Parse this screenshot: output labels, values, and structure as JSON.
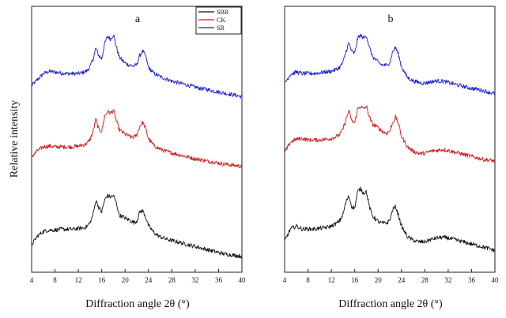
{
  "chart_data": [
    {
      "type": "line",
      "panel_label": "a",
      "xlabel": "Diffraction angle 2θ (°)",
      "ylabel": "Relative intensity",
      "xlim": [
        4,
        40
      ],
      "xticks": [
        4,
        8,
        12,
        16,
        20,
        24,
        28,
        32,
        36,
        40
      ],
      "y_ticks_shown": false,
      "legend": {
        "placement": "top-right",
        "entries": [
          "SBR",
          "CK",
          "SR"
        ]
      },
      "series": [
        {
          "name": "SR",
          "color": "#1a1acc",
          "x": [
            4,
            5,
            6,
            7,
            8,
            9,
            10,
            11,
            12,
            13,
            13.5,
            14,
            14.5,
            15,
            15.5,
            16,
            16.5,
            17,
            17.5,
            18,
            18.5,
            19,
            19.5,
            20,
            20.5,
            21,
            21.5,
            22,
            22.5,
            23,
            23.5,
            24,
            25,
            26,
            27,
            28,
            29,
            30,
            31,
            32,
            33,
            34,
            35,
            36,
            37,
            38,
            39,
            40
          ],
          "y": [
            1.0,
            1.8,
            2.6,
            2.9,
            2.8,
            2.7,
            2.6,
            2.6,
            2.6,
            2.8,
            3.0,
            3.5,
            4.5,
            6.0,
            5.0,
            4.6,
            6.6,
            7.6,
            7.2,
            7.8,
            6.2,
            4.8,
            4.4,
            4.0,
            3.8,
            3.7,
            3.6,
            3.8,
            5.0,
            5.6,
            5.0,
            3.4,
            2.6,
            2.2,
            1.9,
            1.6,
            1.4,
            1.2,
            1.0,
            0.8,
            0.6,
            0.5,
            0.3,
            0.15,
            0.0,
            -0.15,
            -0.3,
            -0.5
          ]
        },
        {
          "name": "CK",
          "color": "#cc1a1a",
          "x": [
            4,
            5,
            6,
            7,
            8,
            9,
            10,
            11,
            12,
            13,
            13.5,
            14,
            14.5,
            15,
            15.5,
            16,
            16.5,
            17,
            17.5,
            18,
            18.5,
            19,
            19.5,
            20,
            20.5,
            21,
            21.5,
            22,
            22.5,
            23,
            23.5,
            24,
            25,
            26,
            27,
            28,
            29,
            30,
            31,
            32,
            33,
            34,
            35,
            36,
            37,
            38,
            39,
            40
          ],
          "y": [
            1.0,
            1.8,
            2.3,
            2.4,
            2.3,
            2.3,
            2.3,
            2.3,
            2.4,
            2.6,
            2.8,
            3.3,
            4.3,
            6.0,
            4.6,
            4.4,
            6.4,
            7.0,
            6.8,
            7.2,
            5.8,
            4.6,
            4.3,
            4.0,
            3.8,
            3.6,
            3.6,
            3.9,
            5.0,
            5.6,
            4.8,
            3.4,
            2.4,
            2.0,
            1.7,
            1.5,
            1.3,
            1.1,
            0.9,
            0.7,
            0.6,
            0.4,
            0.3,
            0.15,
            0.0,
            -0.1,
            -0.2,
            -0.3
          ]
        },
        {
          "name": "SBR",
          "color": "#111111",
          "x": [
            4,
            5,
            6,
            7,
            8,
            9,
            10,
            11,
            12,
            13,
            13.5,
            14,
            14.5,
            15,
            15.5,
            16,
            16.5,
            17,
            17.5,
            18,
            18.5,
            19,
            19.5,
            20,
            20.5,
            21,
            21.5,
            22,
            22.5,
            23,
            23.5,
            24,
            25,
            26,
            27,
            28,
            29,
            30,
            31,
            32,
            33,
            34,
            35,
            36,
            37,
            38,
            39,
            40
          ],
          "y": [
            1.0,
            2.2,
            2.8,
            3.0,
            3.0,
            3.1,
            3.1,
            3.1,
            3.2,
            3.3,
            3.5,
            4.0,
            5.0,
            7.0,
            6.0,
            5.4,
            7.0,
            7.6,
            7.4,
            7.6,
            6.6,
            5.0,
            4.8,
            4.6,
            4.4,
            4.2,
            4.0,
            4.2,
            5.4,
            5.6,
            4.8,
            3.6,
            2.6,
            2.1,
            1.8,
            1.6,
            1.4,
            1.2,
            1.0,
            0.8,
            0.6,
            0.4,
            0.2,
            0.0,
            -0.2,
            -0.3,
            -0.4,
            -0.5
          ]
        }
      ]
    },
    {
      "type": "line",
      "panel_label": "b",
      "xlabel": "Diffraction angle 2θ (°)",
      "ylabel": "",
      "xlim": [
        4,
        40
      ],
      "xticks": [
        4,
        8,
        12,
        16,
        20,
        24,
        28,
        32,
        36,
        40
      ],
      "y_ticks_shown": false,
      "series": [
        {
          "name": "SR",
          "color": "#1a1acc",
          "x": [
            4,
            5,
            6,
            7,
            8,
            9,
            10,
            11,
            12,
            13,
            13.5,
            14,
            14.5,
            15,
            15.5,
            16,
            16.5,
            17,
            17.5,
            18,
            18.5,
            19,
            19.5,
            20,
            20.5,
            21,
            21.5,
            22,
            22.5,
            23,
            23.5,
            24,
            25,
            26,
            27,
            28,
            29,
            30,
            31,
            32,
            33,
            34,
            35,
            36,
            37,
            38,
            39,
            40
          ],
          "y": [
            1.0,
            2.2,
            2.5,
            2.3,
            2.3,
            2.3,
            2.4,
            2.5,
            2.6,
            2.9,
            3.2,
            3.8,
            5.2,
            6.4,
            5.2,
            5.0,
            7.0,
            7.4,
            7.0,
            7.4,
            5.8,
            4.6,
            4.2,
            3.8,
            3.5,
            3.4,
            3.4,
            3.8,
            5.2,
            5.8,
            4.8,
            3.2,
            1.8,
            1.3,
            1.1,
            1.0,
            1.2,
            1.3,
            1.3,
            1.1,
            0.9,
            0.7,
            0.5,
            0.3,
            0.2,
            0.0,
            -0.2,
            -0.4
          ]
        },
        {
          "name": "CK",
          "color": "#cc1a1a",
          "x": [
            4,
            5,
            6,
            7,
            8,
            9,
            10,
            11,
            12,
            13,
            13.5,
            14,
            14.5,
            15,
            15.5,
            16,
            16.5,
            17,
            17.5,
            18,
            18.5,
            19,
            19.5,
            20,
            20.5,
            21,
            21.5,
            22,
            22.5,
            23,
            23.5,
            24,
            25,
            26,
            27,
            28,
            29,
            30,
            31,
            32,
            33,
            34,
            35,
            36,
            37,
            38,
            39,
            40
          ],
          "y": [
            1.0,
            2.4,
            2.8,
            2.9,
            2.7,
            2.7,
            2.7,
            2.8,
            2.9,
            3.2,
            3.5,
            4.2,
            5.4,
            6.6,
            5.2,
            5.0,
            6.8,
            7.2,
            6.8,
            7.2,
            5.8,
            4.8,
            4.6,
            4.3,
            4.0,
            3.7,
            3.6,
            3.9,
            5.0,
            5.8,
            4.8,
            3.2,
            1.8,
            1.2,
            0.9,
            0.9,
            1.2,
            1.3,
            1.4,
            1.3,
            1.1,
            0.9,
            0.7,
            0.5,
            0.3,
            0.1,
            0.0,
            -0.1
          ]
        },
        {
          "name": "SBR",
          "color": "#111111",
          "x": [
            4,
            5,
            6,
            7,
            8,
            9,
            10,
            11,
            12,
            13,
            13.5,
            14,
            14.5,
            15,
            15.5,
            16,
            16.5,
            17,
            17.5,
            18,
            18.5,
            19,
            19.5,
            20,
            20.5,
            21,
            21.5,
            22,
            22.5,
            23,
            23.5,
            24,
            25,
            26,
            27,
            28,
            29,
            30,
            31,
            32,
            33,
            34,
            35,
            36,
            37,
            38,
            39,
            40
          ],
          "y": [
            1.0,
            2.6,
            3.0,
            2.6,
            2.6,
            2.6,
            2.7,
            2.8,
            3.0,
            3.4,
            3.8,
            4.6,
            6.2,
            7.0,
            5.6,
            5.4,
            7.6,
            8.0,
            7.4,
            7.6,
            5.6,
            4.4,
            4.0,
            3.6,
            3.4,
            3.4,
            3.4,
            3.8,
            5.2,
            5.6,
            4.4,
            3.0,
            1.6,
            1.1,
            0.9,
            0.9,
            1.2,
            1.4,
            1.5,
            1.4,
            1.2,
            1.0,
            0.8,
            0.6,
            0.4,
            0.2,
            0.0,
            -0.3
          ]
        }
      ]
    }
  ]
}
